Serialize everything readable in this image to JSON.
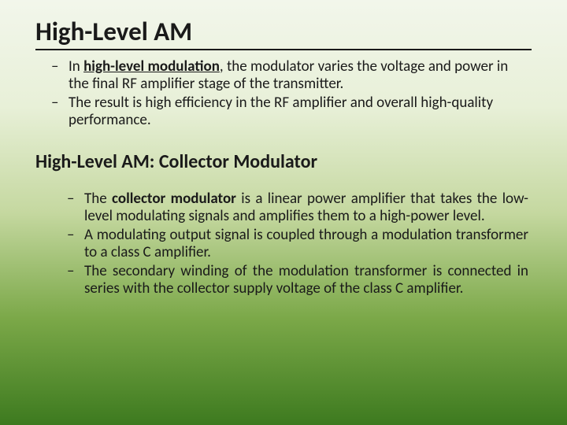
{
  "title": "High-Level AM",
  "section1": {
    "bullets": [
      {
        "prefix": "In ",
        "emphasis": "high-level modulation",
        "suffix": ", the modulator varies the voltage and power in the final RF amplifier stage of the transmitter."
      },
      {
        "text": "The result is high efficiency in the RF amplifier and overall high-quality performance."
      }
    ]
  },
  "subtitle": "High-Level AM: Collector Modulator",
  "section2": {
    "bullets": [
      {
        "prefix": "The ",
        "emphasis": "collector modulator",
        "suffix": " is a linear power amplifier that takes the low-level modulating signals and amplifies them to a high-power level."
      },
      {
        "text": "A modulating output signal is coupled through a modulation transformer to a class C amplifier."
      },
      {
        "text": "The secondary winding of the modulation transformer is connected in series with the collector supply voltage of the class C amplifier."
      }
    ]
  },
  "colors": {
    "text": "#1a1a1a",
    "bg_top": "#f2f6eb",
    "bg_bottom": "#3d7a1f"
  }
}
